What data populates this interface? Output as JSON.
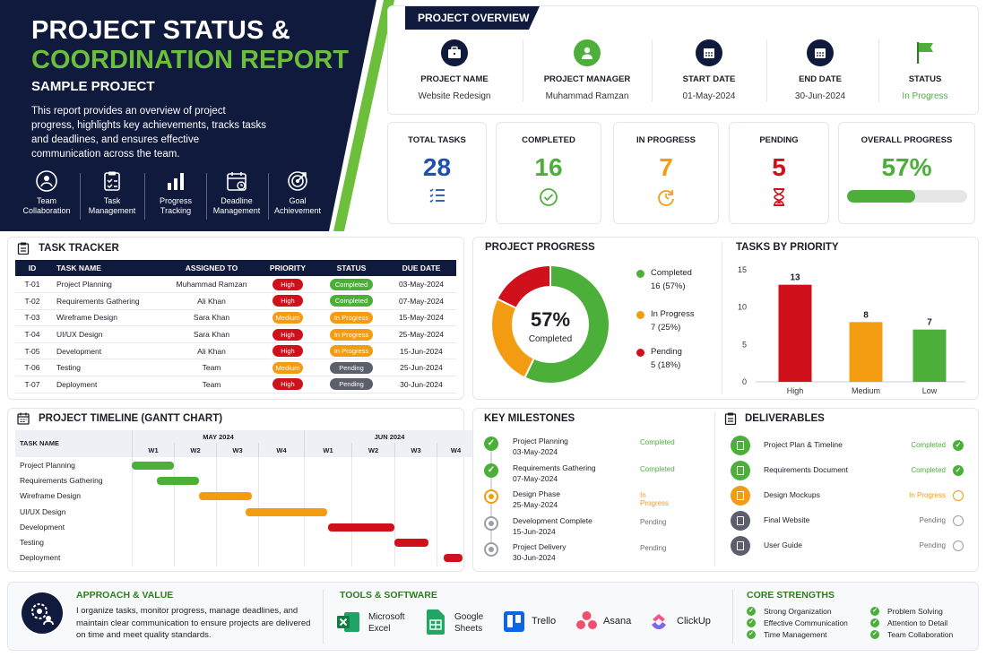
{
  "hero": {
    "title_line1": "PROJECT STATUS &",
    "title_line2": "COORDINATION REPORT",
    "subtitle": "SAMPLE PROJECT",
    "description": "This report provides an overview of project progress, highlights key achievements, tracks tasks and deadlines, and ensures effective communication across the team.",
    "features": [
      {
        "line1": "Team",
        "line2": "Collaboration",
        "icon": "team-icon"
      },
      {
        "line1": "Task",
        "line2": "Management",
        "icon": "clipboard-icon"
      },
      {
        "line1": "Progress",
        "line2": "Tracking",
        "icon": "bar-chart-icon"
      },
      {
        "line1": "Deadline",
        "line2": "Management",
        "icon": "calendar-icon"
      },
      {
        "line1": "Goal",
        "line2": "Achievement",
        "icon": "target-icon"
      }
    ]
  },
  "overview": {
    "title": "PROJECT OVERVIEW",
    "items": [
      {
        "label": "PROJECT NAME",
        "value": "Website Redesign",
        "icon": "briefcase-icon"
      },
      {
        "label": "PROJECT MANAGER",
        "value": "Muhammad Ramzan",
        "icon": "user-icon"
      },
      {
        "label": "START DATE",
        "value": "01-May-2024",
        "icon": "calendar-icon"
      },
      {
        "label": "END DATE",
        "value": "30-Jun-2024",
        "icon": "calendar-icon"
      },
      {
        "label": "STATUS",
        "value": "In Progress",
        "icon": "flag-icon"
      }
    ]
  },
  "stats": {
    "total": {
      "label": "TOTAL TASKS",
      "value": "28"
    },
    "completed": {
      "label": "COMPLETED",
      "value": "16"
    },
    "in_progress": {
      "label": "IN PROGRESS",
      "value": "7"
    },
    "pending": {
      "label": "PENDING",
      "value": "5"
    },
    "overall": {
      "label": "OVERALL PROGRESS",
      "value": "57%",
      "fraction": 0.57
    }
  },
  "colors": {
    "navy": "#0f1a3d",
    "green": "#4caf3a",
    "orange": "#f39c12",
    "red": "#d0101b",
    "blue": "#1f4fb3",
    "grey": "#5a5f6b"
  },
  "task_tracker": {
    "title": "TASK TRACKER",
    "headers": [
      "ID",
      "TASK NAME",
      "ASSIGNED TO",
      "PRIORITY",
      "STATUS",
      "DUE DATE"
    ],
    "rows": [
      {
        "id": "T-01",
        "task": "Project Planning",
        "assigned": "Muhammad Ramzan",
        "priority": "High",
        "status": "Completed",
        "due": "03-May-2024"
      },
      {
        "id": "T-02",
        "task": "Requirements Gathering",
        "assigned": "Ali Khan",
        "priority": "High",
        "status": "Completed",
        "due": "07-May-2024"
      },
      {
        "id": "T-03",
        "task": "Wireframe Design",
        "assigned": "Sara Khan",
        "priority": "Medium",
        "status": "In Progress",
        "due": "15-May-2024"
      },
      {
        "id": "T-04",
        "task": "UI/UX Design",
        "assigned": "Sara Khan",
        "priority": "High",
        "status": "In Progress",
        "due": "25-May-2024"
      },
      {
        "id": "T-05",
        "task": "Development",
        "assigned": "Ali Khan",
        "priority": "High",
        "status": "In Progress",
        "due": "15-Jun-2024"
      },
      {
        "id": "T-06",
        "task": "Testing",
        "assigned": "Team",
        "priority": "Medium",
        "status": "Pending",
        "due": "25-Jun-2024"
      },
      {
        "id": "T-07",
        "task": "Deployment",
        "assigned": "Team",
        "priority": "High",
        "status": "Pending",
        "due": "30-Jun-2024"
      }
    ]
  },
  "project_progress": {
    "title": "PROJECT PROGRESS",
    "center_value": "57%",
    "center_label": "Completed",
    "legend": [
      {
        "name": "Completed",
        "detail": "16 (57%)",
        "color": "#4caf3a"
      },
      {
        "name": "In Progress",
        "detail": "7 (25%)",
        "color": "#f39c12"
      },
      {
        "name": "Pending",
        "detail": "5 (18%)",
        "color": "#d0101b"
      }
    ]
  },
  "chart_data": [
    {
      "type": "pie",
      "title": "PROJECT PROGRESS",
      "categories": [
        "Completed",
        "In Progress",
        "Pending"
      ],
      "values": [
        16,
        7,
        5
      ],
      "colors": [
        "#4caf3a",
        "#f39c12",
        "#d0101b"
      ],
      "donut": true
    },
    {
      "type": "bar",
      "title": "TASKS BY PRIORITY",
      "categories": [
        "High",
        "Medium",
        "Low"
      ],
      "values": [
        13,
        8,
        7
      ],
      "colors": [
        "#d0101b",
        "#f39c12",
        "#4caf3a"
      ],
      "ylim": [
        0,
        15
      ],
      "yticks": [
        "0",
        "5",
        "10",
        "15"
      ],
      "grid": false
    }
  ],
  "priority_chart": {
    "title": "TASKS BY PRIORITY",
    "yticks": [
      "15",
      "10",
      "5",
      "0"
    ]
  },
  "gantt": {
    "title": "PROJECT TIMELINE (GANTT CHART)",
    "task_header": "TASK NAME",
    "months": [
      "MAY 2024",
      "JUN 2024"
    ],
    "weeks": [
      "W1",
      "W2",
      "W3",
      "W4",
      "W1",
      "W2",
      "W3",
      "W4"
    ],
    "tasks": [
      {
        "name": "Project Planning",
        "start_week": 0.0,
        "end_week": 1.0,
        "color": "#4caf3a"
      },
      {
        "name": "Requirements Gathering",
        "start_week": 0.6,
        "end_week": 1.6,
        "color": "#4caf3a"
      },
      {
        "name": "Wireframe Design",
        "start_week": 1.6,
        "end_week": 2.85,
        "color": "#f39c12"
      },
      {
        "name": "UI/UX Design",
        "start_week": 2.7,
        "end_week": 4.5,
        "color": "#f39c12"
      },
      {
        "name": "Development",
        "start_week": 4.5,
        "end_week": 6.0,
        "color": "#d0101b"
      },
      {
        "name": "Testing",
        "start_week": 6.0,
        "end_week": 6.8,
        "color": "#d0101b"
      },
      {
        "name": "Deployment",
        "start_week": 7.2,
        "end_week": 7.7,
        "color": "#d0101b"
      }
    ]
  },
  "milestones": {
    "title": "KEY MILESTONES",
    "items": [
      {
        "name": "Project Planning",
        "date": "03-May-2024",
        "status": "Completed",
        "state": "done"
      },
      {
        "name": "Requirements Gathering",
        "date": "07-May-2024",
        "status": "Completed",
        "state": "done"
      },
      {
        "name": "Design Phase",
        "date": "25-May-2024",
        "status": "In Progress",
        "state": "progress"
      },
      {
        "name": "Development Complete",
        "date": "15-Jun-2024",
        "status": "Pending",
        "state": "pending"
      },
      {
        "name": "Project Delivery",
        "date": "30-Jun-2024",
        "status": "Pending",
        "state": "pending"
      }
    ]
  },
  "deliverables": {
    "title": "DELIVERABLES",
    "items": [
      {
        "name": "Project Plan & Timeline",
        "status": "Completed",
        "state": "done",
        "icon": "document-icon"
      },
      {
        "name": "Requirements Document",
        "status": "Completed",
        "state": "done",
        "icon": "document-icon"
      },
      {
        "name": "Design Mockups",
        "status": "In Progress",
        "state": "progress",
        "icon": "image-icon"
      },
      {
        "name": "Final Website",
        "status": "Pending",
        "state": "pending",
        "icon": "monitor-icon"
      },
      {
        "name": "User Guide",
        "status": "Pending",
        "state": "pending",
        "icon": "book-icon"
      }
    ]
  },
  "approach": {
    "title": "APPROACH & VALUE",
    "text": "I organize tasks, monitor progress, manage deadlines, and maintain clear communication to ensure projects are delivered on time and meet quality standards."
  },
  "tools": {
    "title": "TOOLS & SOFTWARE",
    "items": [
      {
        "line1": "Microsoft",
        "line2": "Excel",
        "icon": "excel-icon"
      },
      {
        "line1": "Google",
        "line2": "Sheets",
        "icon": "sheets-icon"
      },
      {
        "line1": "Trello",
        "line2": "",
        "icon": "trello-icon"
      },
      {
        "line1": "Asana",
        "line2": "",
        "icon": "asana-icon"
      },
      {
        "line1": "ClickUp",
        "line2": "",
        "icon": "clickup-icon"
      }
    ]
  },
  "strengths": {
    "title": "CORE STRENGTHS",
    "items": [
      "Strong Organization",
      "Effective Communication",
      "Time Management",
      "Problem Solving",
      "Attention to Detail",
      "Team Collaboration"
    ]
  }
}
